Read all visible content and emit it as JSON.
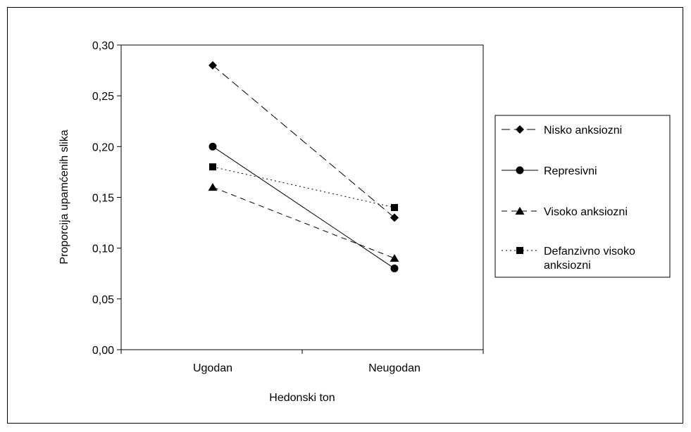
{
  "chart_data": {
    "type": "line",
    "xlabel": "Hedonski ton",
    "ylabel": "Proporcija upamćenih slika",
    "categories": [
      "Ugodan",
      "Neugodan"
    ],
    "ylim": [
      0,
      0.3
    ],
    "yticks": [
      "0,00",
      "0,05",
      "0,10",
      "0,15",
      "0,20",
      "0,25",
      "0,30"
    ],
    "legend_position": "right",
    "grid": false,
    "series": [
      {
        "name": "Nisko anksiozni",
        "values": [
          0.28,
          0.13
        ],
        "marker": "diamond",
        "dash": "long-dash"
      },
      {
        "name": "Represivni",
        "values": [
          0.2,
          0.08
        ],
        "marker": "circle",
        "dash": "solid"
      },
      {
        "name": "Visoko anksiozni",
        "values": [
          0.16,
          0.09
        ],
        "marker": "triangle",
        "dash": "dash"
      },
      {
        "name": "Defanzivno visoko anksiozni",
        "legend_lines": [
          "Defanzivno visoko",
          "anksiozni"
        ],
        "values": [
          0.18,
          0.14
        ],
        "marker": "square",
        "dash": "dotted"
      }
    ]
  }
}
